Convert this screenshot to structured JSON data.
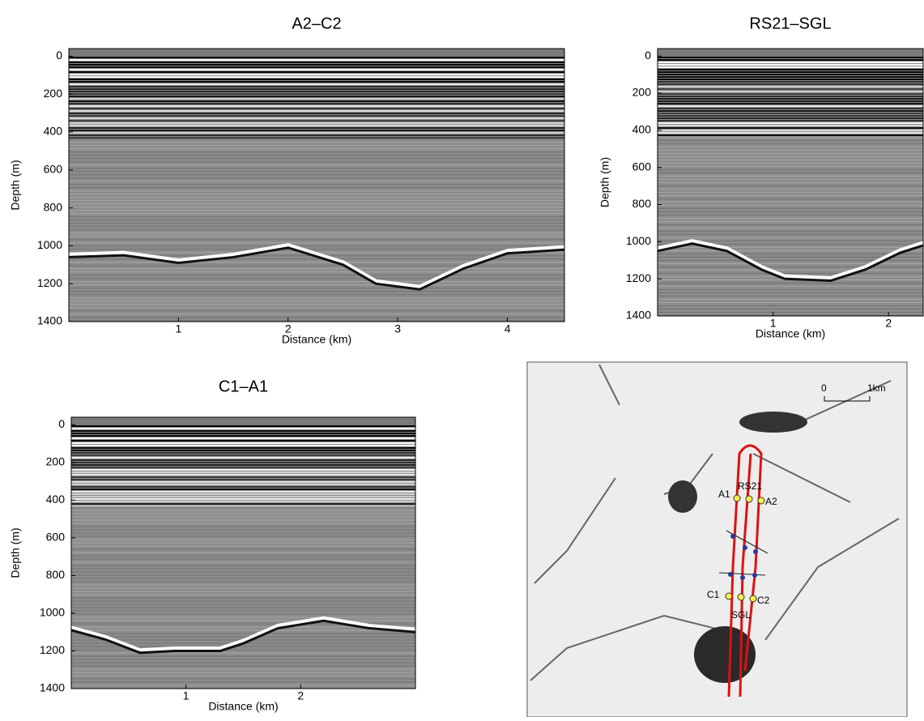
{
  "chart_data": [
    {
      "type": "radargram",
      "title": "A2–C2",
      "x_label": "Distance (km)",
      "y_label": "Depth (m)",
      "xlim": [
        0,
        4.52
      ],
      "ylim": [
        1400,
        -40
      ],
      "xticks": [
        1,
        2,
        3,
        4
      ],
      "yticks": [
        0,
        200,
        400,
        600,
        800,
        1000,
        1200,
        1400
      ],
      "x": [
        0,
        0.5,
        1.0,
        1.5,
        2.0,
        2.5,
        2.8,
        3.2,
        3.6,
        4.0,
        4.52
      ],
      "values": [
        1060,
        1050,
        1090,
        1060,
        1010,
        1100,
        1200,
        1230,
        1120,
        1040,
        1020
      ]
    },
    {
      "type": "radargram",
      "title": "RS21–SGL",
      "x_label": "Distance (km)",
      "y_label": "Depth (m)",
      "xlim": [
        0,
        2.3
      ],
      "ylim": [
        1400,
        -40
      ],
      "xticks": [
        1,
        2
      ],
      "yticks": [
        0,
        200,
        400,
        600,
        800,
        1000,
        1200,
        1400
      ],
      "x": [
        0,
        0.3,
        0.6,
        0.9,
        1.1,
        1.5,
        1.8,
        2.1,
        2.3
      ],
      "values": [
        1050,
        1010,
        1050,
        1150,
        1200,
        1210,
        1150,
        1060,
        1020
      ]
    },
    {
      "type": "radargram",
      "title": "C1–A1",
      "x_label": "Distance (km)",
      "y_label": "Depth (m)",
      "xlim": [
        0,
        3.0
      ],
      "ylim": [
        1400,
        -40
      ],
      "xticks": [
        1,
        2
      ],
      "yticks": [
        0,
        200,
        400,
        600,
        800,
        1000,
        1200,
        1400
      ],
      "x": [
        0,
        0.3,
        0.6,
        0.9,
        1.3,
        1.5,
        1.8,
        2.2,
        2.6,
        3.0
      ],
      "values": [
        1090,
        1140,
        1210,
        1200,
        1200,
        1160,
        1080,
        1040,
        1080,
        1100
      ]
    }
  ],
  "map": {
    "scale_labels": [
      "0",
      "1km"
    ],
    "point_labels": [
      "A1",
      "RS21",
      "A2",
      "C1",
      "SGL",
      "C2"
    ]
  }
}
